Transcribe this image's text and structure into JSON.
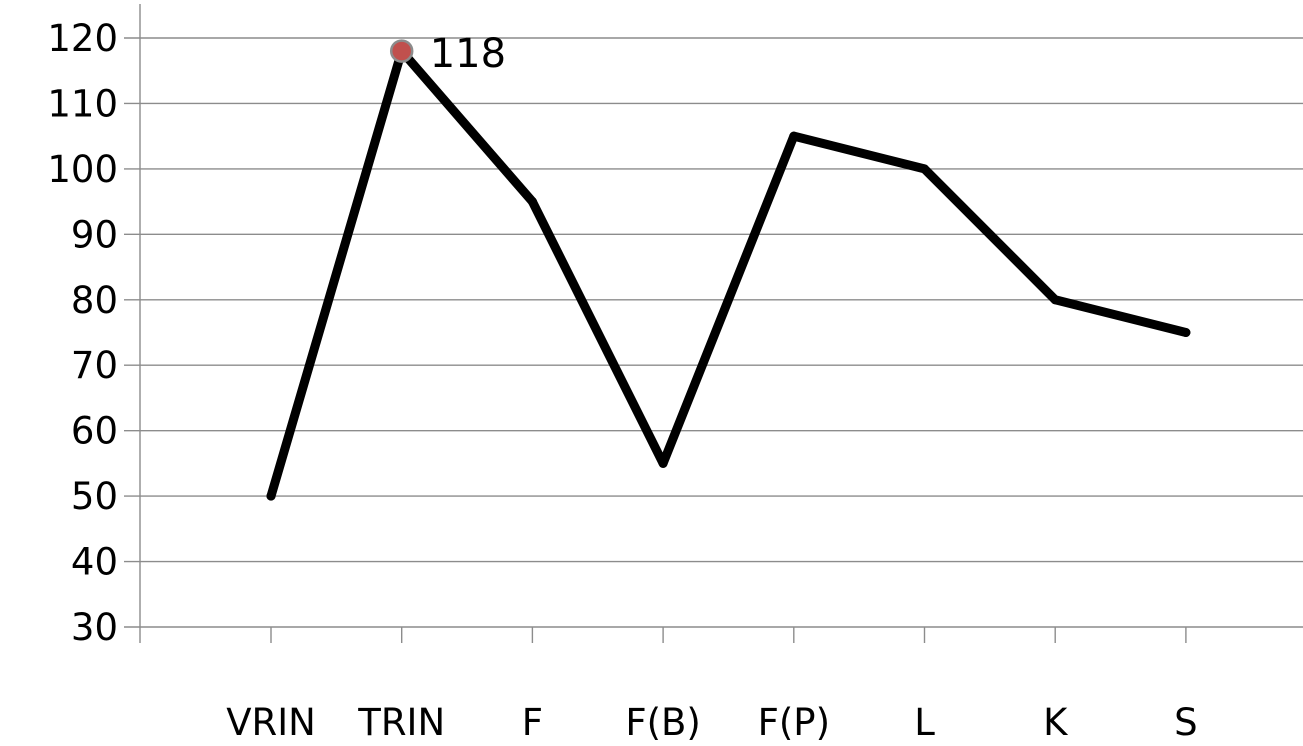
{
  "chart_data": {
    "type": "line",
    "title": "",
    "xlabel": "",
    "ylabel": "",
    "categories": [
      "VRIN",
      "TRIN",
      "F",
      "F(B)",
      "F(P)",
      "L",
      "K",
      "S"
    ],
    "series": [
      {
        "values": [
          50,
          118,
          95,
          55,
          105,
          100,
          80,
          75
        ]
      }
    ],
    "ylim": [
      30,
      120
    ],
    "yticks": [
      30,
      40,
      50,
      60,
      70,
      80,
      90,
      100,
      110,
      120
    ],
    "grid": true,
    "legend": "none",
    "highlight": {
      "category": "TRIN",
      "value": 118,
      "label": "118"
    },
    "colors": {
      "line": "#000000",
      "grid": "#8c8c8c",
      "marker_fill": "#c0504d",
      "marker_stroke": "#8c8c8c"
    }
  }
}
